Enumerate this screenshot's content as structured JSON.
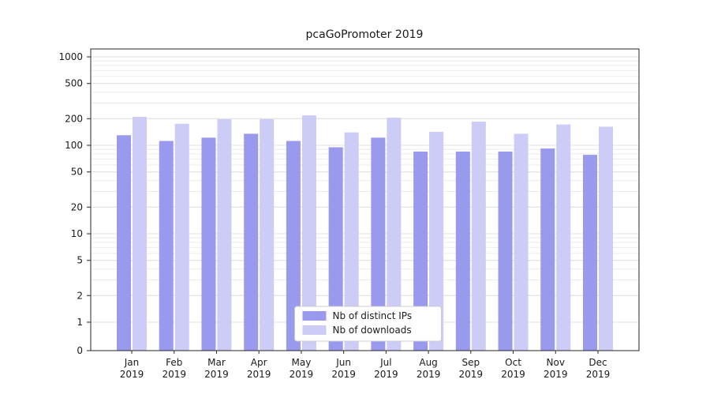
{
  "chart_data": {
    "type": "bar",
    "title": "pcaGoPromoter 2019",
    "year": "2019",
    "categories": [
      "Jan",
      "Feb",
      "Mar",
      "Apr",
      "May",
      "Jun",
      "Jul",
      "Aug",
      "Sep",
      "Oct",
      "Nov",
      "Dec"
    ],
    "series": [
      {
        "name": "Nb of distinct IPs",
        "color": "#9999ee",
        "values": [
          130,
          112,
          122,
          135,
          112,
          95,
          122,
          85,
          85,
          85,
          92,
          78
        ]
      },
      {
        "name": "Nb of downloads",
        "color": "#ccccf6",
        "values": [
          210,
          175,
          197,
          197,
          218,
          140,
          205,
          142,
          185,
          135,
          172,
          162
        ]
      }
    ],
    "yscale": "symlog",
    "yticks": [
      0,
      1,
      2,
      5,
      10,
      20,
      50,
      100,
      200,
      500,
      1000
    ],
    "ylim": [
      0,
      1200
    ],
    "grid": true,
    "legend_position": "lower center",
    "colors": {
      "grid_minor": "#ebebeb",
      "grid_major": "#e0e0e0",
      "spine": "#262626",
      "legend_border": "#cccccc",
      "legend_bg": "#ffffff"
    }
  }
}
